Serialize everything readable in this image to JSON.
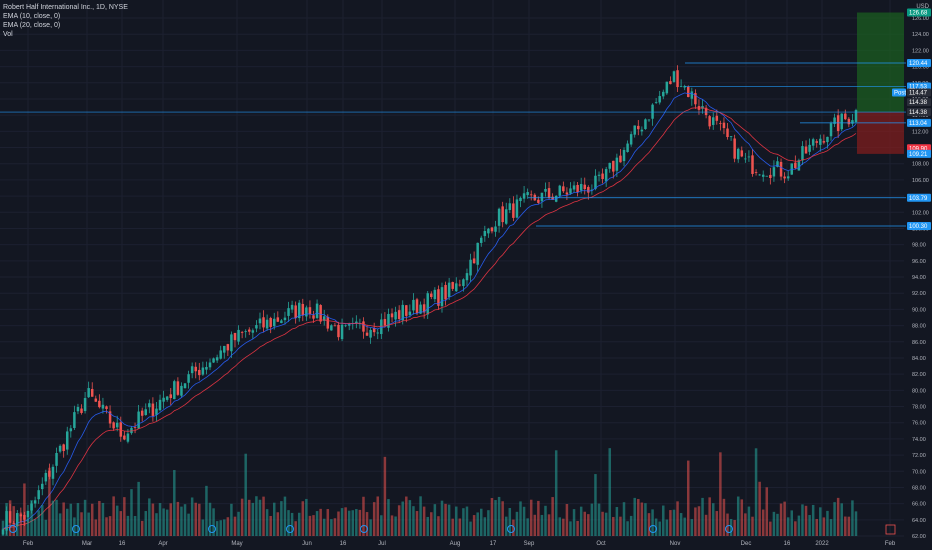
{
  "legend": {
    "symbol": "Robert Half International Inc., 1D, NYSE",
    "ema10": "EMA (10, close, 0)",
    "ema20": "EMA (20, close, 0)",
    "vol": "Vol"
  },
  "currency": "USD",
  "colors": {
    "background": "#131722",
    "up": "#26a69a",
    "down": "#ef5350",
    "ema10": "#2962ff",
    "ema20": "#f23645",
    "hline": "#2196f3",
    "target_zone": "#1b5e20",
    "stop_zone": "#7f1d1d",
    "label_blue": "#2196f3"
  },
  "y_axis_ticks": [
    "126.00",
    "124.00",
    "122.00",
    "120.00",
    "118.00",
    "116.00",
    "114.00",
    "112.00",
    "110.00",
    "108.00",
    "106.00",
    "104.00",
    "102.00",
    "100.00",
    "98.00",
    "96.00",
    "94.00",
    "92.00",
    "90.00",
    "88.00",
    "86.00",
    "84.00",
    "82.00",
    "80.00",
    "78.00",
    "76.00",
    "74.00",
    "72.00",
    "70.00",
    "68.00",
    "66.00",
    "64.00",
    "62.00"
  ],
  "x_axis_ticks": [
    "Feb",
    "Mar",
    "16",
    "Apr",
    "May",
    "Jun",
    "16",
    "Jul",
    "Aug",
    "17",
    "Sep",
    "Oct",
    "Nov",
    "Dec",
    "16",
    "2022",
    "Feb"
  ],
  "price_labels": [
    {
      "text": "126.68",
      "price": 126.68,
      "color": "#089981"
    },
    {
      "text": "120.44",
      "price": 120.44,
      "color": "#2196f3"
    },
    {
      "text": "117.53",
      "price": 117.53,
      "color": "#2196f3"
    },
    {
      "text": "Post",
      "price": 116.8,
      "color": "#2196f3"
    },
    {
      "text": "114.47",
      "price": 116.8,
      "color": "#2a2e39"
    },
    {
      "text": "114.38",
      "price": 115.6,
      "color": "#2a2e39"
    },
    {
      "text": "114.38",
      "price": 114.38,
      "color": "#2a2e39"
    },
    {
      "text": "113.04",
      "price": 113.04,
      "color": "#2196f3"
    },
    {
      "text": "109.90",
      "price": 109.9,
      "color": "#f23645"
    },
    {
      "text": "109.21",
      "price": 109.21,
      "color": "#2196f3"
    },
    {
      "text": "103.79",
      "price": 103.79,
      "color": "#2196f3"
    },
    {
      "text": "100.30",
      "price": 100.3,
      "color": "#2196f3"
    }
  ],
  "horizontal_levels": [
    {
      "price": 120.44,
      "from": "Nov"
    },
    {
      "price": 117.53,
      "from": "Nov"
    },
    {
      "price": 113.04,
      "from": "Dec"
    },
    {
      "price": 103.79,
      "from": "Sep"
    },
    {
      "price": 100.3,
      "from": "Aug"
    },
    {
      "price": 114.38,
      "from": "Feb"
    }
  ],
  "position_tool": {
    "entry": 114.38,
    "target": 126.68,
    "stop": 109.21
  },
  "chart_data": {
    "type": "candlestick",
    "symbol": "Robert Half International Inc.",
    "timeframe": "1D",
    "exchange": "NYSE",
    "ylim": [
      62,
      127
    ],
    "trend_keypoints": [
      {
        "x": "Feb",
        "close": 64.5
      },
      {
        "x": "Mar",
        "close": 79.5
      },
      {
        "x": "16",
        "close": 74.5
      },
      {
        "x": "Apr",
        "close": 79
      },
      {
        "x": "May",
        "close": 86.5
      },
      {
        "x": "Jun",
        "close": 90.5
      },
      {
        "x": "16",
        "close": 87
      },
      {
        "x": "Jul",
        "close": 88.5
      },
      {
        "x": "Aug",
        "close": 92.5
      },
      {
        "x": "17",
        "close": 101
      },
      {
        "x": "Sep",
        "close": 103.5
      },
      {
        "x": "Oct",
        "close": 105.5
      },
      {
        "x": "Nov",
        "close": 119
      },
      {
        "x": "Dec",
        "close": 108
      },
      {
        "x": "16",
        "close": 107
      },
      {
        "x": "2022",
        "close": 111.5
      },
      {
        "x": "end",
        "close": 114.38
      }
    ],
    "series": [
      {
        "name": "EMA (10, close, 0)"
      },
      {
        "name": "EMA (20, close, 0)"
      },
      {
        "name": "Vol"
      }
    ]
  }
}
